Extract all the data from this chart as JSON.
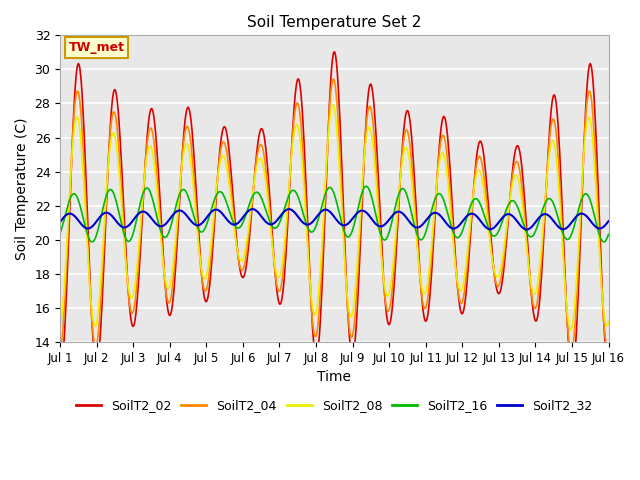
{
  "title": "Soil Temperature Set 2",
  "xlabel": "Time",
  "ylabel": "Soil Temperature (C)",
  "ylim": [
    14,
    32
  ],
  "xlim": [
    0,
    15
  ],
  "xtick_labels": [
    "Jul 1",
    "Jul 2",
    "Jul 3",
    "Jul 4",
    "Jul 5",
    "Jul 6",
    "Jul 7",
    "Jul 8",
    "Jul 9",
    "Jul 10",
    "Jul 11",
    "Jul 12",
    "Jul 13",
    "Jul 14",
    "Jul 15",
    "Jul 16"
  ],
  "xtick_positions": [
    0,
    1,
    2,
    3,
    4,
    5,
    6,
    7,
    8,
    9,
    10,
    11,
    12,
    13,
    14,
    15
  ],
  "ytick_labels": [
    "14",
    "16",
    "18",
    "20",
    "22",
    "24",
    "26",
    "28",
    "30",
    "32"
  ],
  "ytick_positions": [
    14,
    16,
    18,
    20,
    22,
    24,
    26,
    28,
    30,
    32
  ],
  "series_colors": [
    "#dd0000",
    "#ff8800",
    "#eeee00",
    "#00bb00",
    "#0000cc"
  ],
  "series_names": [
    "SoilT2_02",
    "SoilT2_04",
    "SoilT2_08",
    "SoilT2_16",
    "SoilT2_32"
  ],
  "plot_bg_color": "#e8e8e8",
  "annotation_text": "TW_met",
  "annotation_bg": "#ffffcc",
  "annotation_border": "#cc9900",
  "annotation_text_color": "#cc0000"
}
